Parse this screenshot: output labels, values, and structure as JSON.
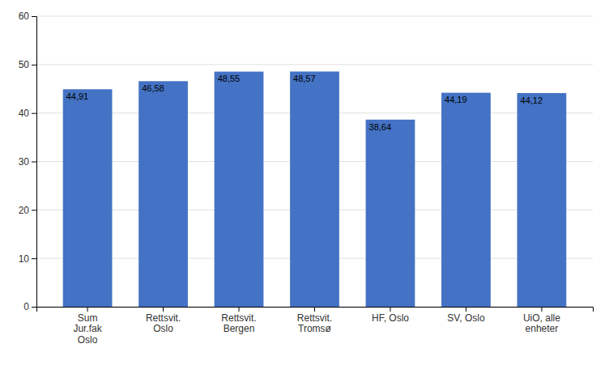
{
  "chart_data": {
    "type": "bar",
    "categories": [
      "Sum\nJur.fak\nOslo",
      "Rettsvit.\nOslo",
      "Rettsvit.\nBergen",
      "Rettsvit.\nTromsø",
      "HF, Oslo",
      "SV, Oslo",
      "UiO, alle\nenheter"
    ],
    "values": [
      44.91,
      46.58,
      48.55,
      48.57,
      38.64,
      44.19,
      44.12
    ],
    "value_labels": [
      "44,91",
      "46,58",
      "48,55",
      "48,57",
      "38,64",
      "44,19",
      "44,12"
    ],
    "data_labels": true,
    "color": "#4472C4",
    "ylim": [
      0,
      60
    ],
    "yticks": [
      0,
      10,
      20,
      30,
      40,
      50,
      60
    ],
    "grid": true
  }
}
